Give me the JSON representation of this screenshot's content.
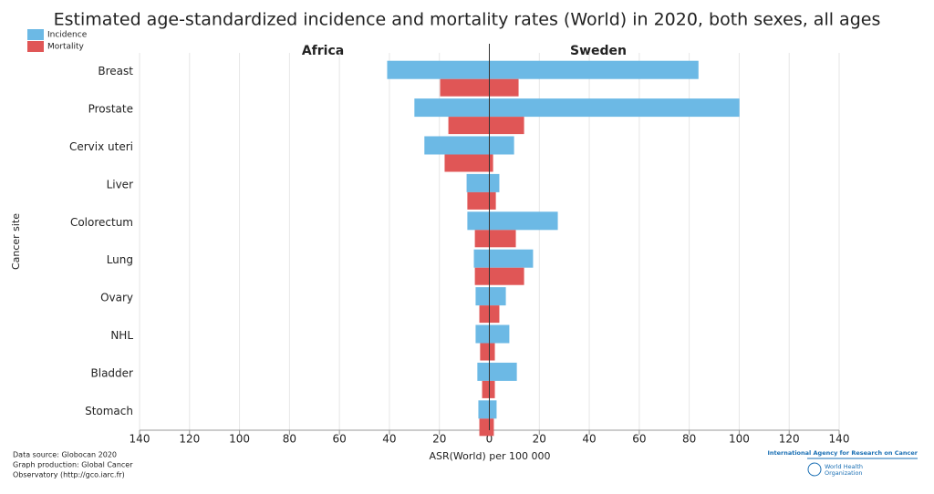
{
  "chart_data": {
    "type": "butterfly_bar",
    "title": "Estimated age-standardized incidence and mortality rates (World) in 2020, both sexes, all ages",
    "panels": [
      "Africa",
      "Sweden"
    ],
    "categories": [
      "Breast",
      "Prostate",
      "Cervix uteri",
      "Liver",
      "Colorectum",
      "Lung",
      "Ovary",
      "NHL",
      "Bladder",
      "Stomach"
    ],
    "series": [
      {
        "name": "Incidence",
        "color": "#6cb9e5",
        "left_values": [
          -40.9,
          -30,
          -26,
          -9.1,
          -8.8,
          -6.2,
          -5.5,
          -5.5,
          -4.8,
          -4.4
        ],
        "values": [
          83.7,
          100.1,
          9.9,
          4,
          27.4,
          17.5,
          6.6,
          8,
          11,
          2.9
        ]
      },
      {
        "name": "Mortality",
        "color": "#e05656",
        "left_values": [
          -19.7,
          -16.4,
          -17.9,
          -8.8,
          -5.8,
          -5.8,
          -4,
          -3.7,
          -2.9,
          -4
        ],
        "values": [
          11.7,
          13.9,
          1.5,
          2.6,
          10.6,
          13.9,
          4,
          2.2,
          2.2,
          1.8
        ]
      }
    ],
    "xlabel": "ASR(World) per 100 000",
    "ylabel": "Cancer site",
    "xlim": [
      -140,
      140
    ],
    "xticks": [
      {
        "value": -140,
        "label": "140"
      },
      {
        "value": -120,
        "label": "120"
      },
      {
        "value": -100,
        "label": "100"
      },
      {
        "value": -80,
        "label": "80"
      },
      {
        "value": -60,
        "label": "60"
      },
      {
        "value": -40,
        "label": "40"
      },
      {
        "value": -20,
        "label": "20"
      },
      0,
      20,
      40,
      60,
      80,
      100,
      120,
      140
    ],
    "grid": true,
    "legend": "top-left",
    "footer": [
      "Data source: Globocan 2020",
      "Graph production: Global Cancer",
      "Observatory (http://gco.iarc.fr)"
    ],
    "logos": [
      "International Agency for Research on Cancer",
      "World Health",
      "Organization"
    ]
  }
}
